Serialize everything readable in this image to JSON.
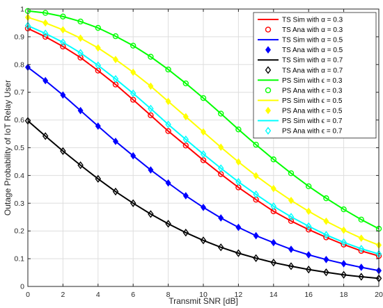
{
  "chart_data": {
    "type": "line",
    "xlabel": "Transmit SNR [dB]",
    "ylabel": "Outage Probability of IoT Relay User",
    "xlim": [
      0,
      20
    ],
    "ylim": [
      0,
      1
    ],
    "grid": true,
    "legend_position": "top-right",
    "x": [
      0,
      1,
      2,
      3,
      4,
      5,
      6,
      7,
      8,
      9,
      10,
      11,
      12,
      13,
      14,
      15,
      16,
      17,
      18,
      19,
      20
    ],
    "xticks": [
      "0",
      "2",
      "4",
      "6",
      "8",
      "10",
      "12",
      "14",
      "16",
      "18",
      "20"
    ],
    "yticks": [
      "0",
      "0.1",
      "0.2",
      "0.3",
      "0.4",
      "0.5",
      "0.6",
      "0.7",
      "0.8",
      "0.9",
      "1"
    ],
    "series": [
      {
        "name": "TS Sim with α = 0.3",
        "kind": "sim",
        "color": "#ff0000",
        "values": [
          0.93,
          0.9,
          0.865,
          0.825,
          0.778,
          0.728,
          0.673,
          0.617,
          0.56,
          0.508,
          0.455,
          0.405,
          0.357,
          0.313,
          0.271,
          0.236,
          0.205,
          0.177,
          0.151,
          0.128,
          0.11
        ]
      },
      {
        "name": "TS Ana with α = 0.3",
        "kind": "ana",
        "marker": "circle",
        "color": "#ff0000",
        "values": [
          0.93,
          0.9,
          0.865,
          0.825,
          0.778,
          0.728,
          0.673,
          0.617,
          0.56,
          0.508,
          0.455,
          0.405,
          0.357,
          0.313,
          0.271,
          0.236,
          0.205,
          0.177,
          0.151,
          0.128,
          0.11
        ]
      },
      {
        "name": "TS Sim with α = 0.5",
        "kind": "sim",
        "color": "#0000ff",
        "values": [
          0.79,
          0.742,
          0.69,
          0.634,
          0.578,
          0.523,
          0.471,
          0.42,
          0.373,
          0.327,
          0.285,
          0.247,
          0.213,
          0.183,
          0.158,
          0.134,
          0.114,
          0.097,
          0.082,
          0.069,
          0.057
        ]
      },
      {
        "name": "TS Ana with α = 0.5",
        "kind": "ana",
        "marker": "diamond-filled",
        "color": "#0000ff",
        "values": [
          0.79,
          0.742,
          0.69,
          0.634,
          0.578,
          0.523,
          0.471,
          0.42,
          0.373,
          0.327,
          0.285,
          0.247,
          0.213,
          0.183,
          0.158,
          0.134,
          0.114,
          0.097,
          0.082,
          0.069,
          0.057
        ]
      },
      {
        "name": "TS Sim with α = 0.7",
        "kind": "sim",
        "color": "#000000",
        "values": [
          0.597,
          0.542,
          0.488,
          0.437,
          0.388,
          0.342,
          0.3,
          0.261,
          0.226,
          0.194,
          0.166,
          0.141,
          0.12,
          0.102,
          0.086,
          0.073,
          0.061,
          0.051,
          0.042,
          0.035,
          0.029
        ]
      },
      {
        "name": "TS Ana with α = 0.7",
        "kind": "ana",
        "marker": "diamond-open",
        "color": "#000000",
        "values": [
          0.597,
          0.542,
          0.488,
          0.437,
          0.388,
          0.342,
          0.3,
          0.261,
          0.226,
          0.194,
          0.166,
          0.141,
          0.12,
          0.102,
          0.086,
          0.073,
          0.061,
          0.051,
          0.042,
          0.035,
          0.029
        ]
      },
      {
        "name": "PS Sim with ϵ = 0.3",
        "kind": "sim",
        "color": "#00ff00",
        "values": [
          0.993,
          0.986,
          0.973,
          0.955,
          0.932,
          0.902,
          0.868,
          0.828,
          0.782,
          0.732,
          0.679,
          0.623,
          0.566,
          0.511,
          0.458,
          0.408,
          0.361,
          0.318,
          0.278,
          0.241,
          0.208
        ]
      },
      {
        "name": "PS Ana with ϵ = 0.3",
        "kind": "ana",
        "marker": "circle",
        "color": "#00ff00",
        "values": [
          0.993,
          0.986,
          0.973,
          0.955,
          0.932,
          0.902,
          0.868,
          0.828,
          0.782,
          0.732,
          0.679,
          0.623,
          0.566,
          0.511,
          0.458,
          0.408,
          0.361,
          0.318,
          0.278,
          0.241,
          0.208
        ]
      },
      {
        "name": "PS Sim with ϵ = 0.5",
        "kind": "sim",
        "color": "#ffff00",
        "values": [
          0.97,
          0.95,
          0.925,
          0.895,
          0.86,
          0.818,
          0.772,
          0.722,
          0.667,
          0.612,
          0.557,
          0.502,
          0.449,
          0.399,
          0.353,
          0.31,
          0.271,
          0.235,
          0.203,
          0.174,
          0.149
        ]
      },
      {
        "name": "PS Ana with ϵ = 0.5",
        "kind": "ana",
        "marker": "diamond-filled",
        "color": "#ffff00",
        "values": [
          0.97,
          0.95,
          0.925,
          0.895,
          0.86,
          0.818,
          0.772,
          0.722,
          0.667,
          0.612,
          0.557,
          0.502,
          0.449,
          0.399,
          0.353,
          0.31,
          0.271,
          0.235,
          0.203,
          0.174,
          0.149
        ]
      },
      {
        "name": "PS Sim with ϵ = 0.7",
        "kind": "sim",
        "color": "#00ffff",
        "values": [
          0.94,
          0.912,
          0.88,
          0.842,
          0.797,
          0.748,
          0.696,
          0.641,
          0.584,
          0.53,
          0.477,
          0.426,
          0.377,
          0.332,
          0.289,
          0.251,
          0.217,
          0.186,
          0.159,
          0.136,
          0.117
        ]
      },
      {
        "name": "PS Ana with ϵ = 0.7",
        "kind": "ana",
        "marker": "diamond-open",
        "color": "#00ffff",
        "values": [
          0.94,
          0.912,
          0.88,
          0.842,
          0.797,
          0.748,
          0.696,
          0.641,
          0.584,
          0.53,
          0.477,
          0.426,
          0.377,
          0.332,
          0.289,
          0.251,
          0.217,
          0.186,
          0.159,
          0.136,
          0.117
        ]
      }
    ]
  }
}
